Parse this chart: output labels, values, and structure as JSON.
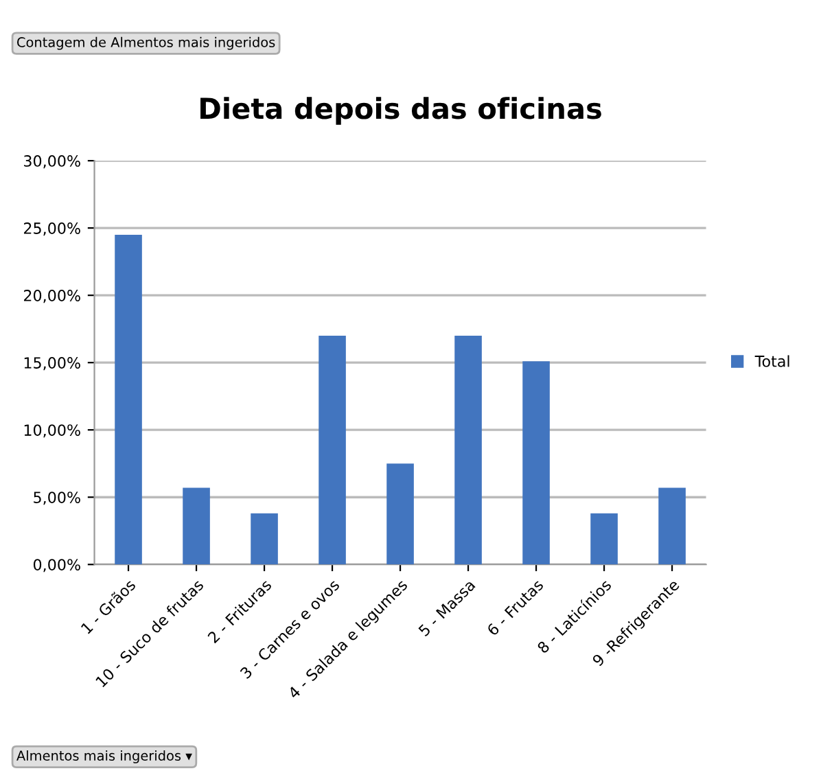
{
  "chart_data": {
    "type": "bar",
    "title": "Dieta depois das oficinas",
    "categories": [
      "1 - Grãos",
      "10 - Suco de frutas",
      "2 - Frituras",
      "3 - Carnes e ovos",
      "4 - Salada e legumes",
      "5 - Massa",
      "6 - Frutas",
      "8 - Laticínios",
      "9 -Refrigerante"
    ],
    "series": [
      {
        "name": "Total",
        "color": "#4275bf",
        "values": [
          24.5,
          5.7,
          3.8,
          17.0,
          7.5,
          17.0,
          15.1,
          3.8,
          5.7
        ]
      }
    ],
    "ylim": [
      0,
      30
    ],
    "yticks": [
      {
        "value": 0,
        "label": "0,00%"
      },
      {
        "value": 5,
        "label": "5,00%"
      },
      {
        "value": 10,
        "label": "10,00%"
      },
      {
        "value": 15,
        "label": "15,00%"
      },
      {
        "value": 20,
        "label": "20,00%"
      },
      {
        "value": 25,
        "label": "25,00%"
      },
      {
        "value": 30,
        "label": "30,00%"
      }
    ],
    "grid": "y",
    "legend": "right",
    "annotations": [
      "Contagem de Almentos mais ingeridos",
      "Almentos mais ingeridos ▾"
    ]
  }
}
